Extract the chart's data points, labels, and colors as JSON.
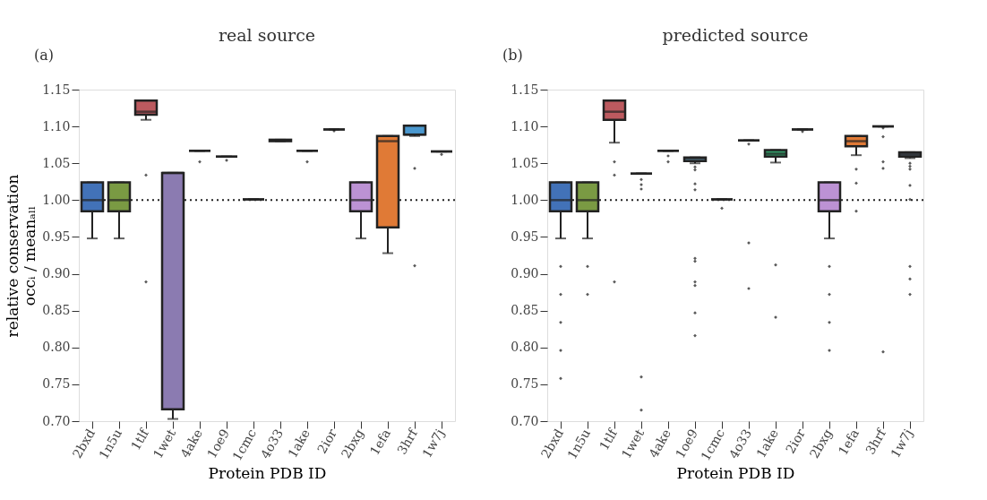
{
  "chart_data": [
    {
      "type": "box",
      "title": "real source",
      "xlabel": "Protein PDB ID",
      "ylabel": "relative conservation\noccᵢ / meanₐₗₗ",
      "annotations": [
        "(a)"
      ],
      "categories": [
        "2bxd",
        "1n5u",
        "1tlf",
        "1wet",
        "4ake",
        "1oe9",
        "1cmc",
        "4o33",
        "1ake",
        "2ior",
        "2bxg",
        "1efa",
        "3hrf",
        "1w7j"
      ],
      "colors": [
        "#4272b8",
        "#7a9a43",
        "#bc5a5f",
        "#8b7bb1",
        "#222222",
        "#222222",
        "#222222",
        "#222222",
        "#222222",
        "#222222",
        "#bc92d4",
        "#e07a36",
        "#4a98cf",
        "#222222"
      ],
      "boxes": [
        {
          "low": 0.948,
          "q1": 0.985,
          "median": 1.0,
          "q3": 1.024,
          "high": 1.024
        },
        {
          "low": 0.948,
          "q1": 0.985,
          "median": 1.0,
          "q3": 1.024,
          "high": 1.024
        },
        {
          "low": 1.109,
          "q1": 1.116,
          "median": 1.12,
          "q3": 1.135,
          "high": 1.135,
          "outliers": [
            1.034,
            0.889
          ]
        },
        {
          "low": 0.703,
          "q1": 0.716,
          "median": 1.037,
          "q3": 1.037,
          "high": 1.037
        },
        {
          "low": 1.067,
          "q1": 1.067,
          "median": 1.067,
          "q3": 1.067,
          "high": 1.067,
          "outliers": [
            1.052
          ]
        },
        {
          "low": 1.059,
          "q1": 1.059,
          "median": 1.059,
          "q3": 1.059,
          "high": 1.059,
          "outliers": [
            1.054
          ]
        },
        {
          "low": 1.001,
          "q1": 1.001,
          "median": 1.001,
          "q3": 1.001,
          "high": 1.001
        },
        {
          "low": 1.08,
          "q1": 1.08,
          "median": 1.081,
          "q3": 1.082,
          "high": 1.082
        },
        {
          "low": 1.067,
          "q1": 1.067,
          "median": 1.067,
          "q3": 1.067,
          "high": 1.067,
          "outliers": [
            1.052
          ]
        },
        {
          "low": 1.096,
          "q1": 1.096,
          "median": 1.096,
          "q3": 1.096,
          "high": 1.096,
          "outliers": [
            1.094
          ]
        },
        {
          "low": 0.948,
          "q1": 0.985,
          "median": 1.0,
          "q3": 1.024,
          "high": 1.024
        },
        {
          "low": 0.928,
          "q1": 0.963,
          "median": 1.08,
          "q3": 1.087,
          "high": 1.087
        },
        {
          "low": 1.087,
          "q1": 1.089,
          "median": 1.089,
          "q3": 1.101,
          "high": 1.101,
          "outliers": [
            1.043,
            0.911
          ]
        },
        {
          "low": 1.066,
          "q1": 1.066,
          "median": 1.066,
          "q3": 1.066,
          "high": 1.066,
          "outliers": [
            1.062
          ]
        }
      ],
      "ylim": [
        0.7,
        1.15
      ],
      "yticks": [
        {
          "value": 0.7,
          "label": "0.70"
        },
        0.75,
        {
          "value": 0.8,
          "label": "0.80"
        },
        0.85,
        {
          "value": 0.9,
          "label": "0.90"
        },
        0.95,
        {
          "value": 1.0,
          "label": "1.00"
        },
        1.05,
        {
          "value": 1.1,
          "label": "1.10"
        },
        1.15
      ],
      "ref_lines": [
        {
          "axis": "y",
          "value": 1.0,
          "color": "#222222",
          "line_style": "dotted"
        }
      ],
      "marker": "diamond"
    },
    {
      "type": "box",
      "title": "predicted source",
      "xlabel": "Protein PDB ID",
      "annotations": [
        "(b)"
      ],
      "categories": [
        "2bxd",
        "1n5u",
        "1tlf",
        "1wet",
        "4ake",
        "1oe9",
        "1cmc",
        "4o33",
        "1ake",
        "2ior",
        "2bxg",
        "1efa",
        "3hrf",
        "1w7j"
      ],
      "colors": [
        "#4272b8",
        "#7a9a43",
        "#bc5a5f",
        "#222222",
        "#222222",
        "#7ab6d4",
        "#222222",
        "#222222",
        "#33a06b",
        "#222222",
        "#bc92d4",
        "#e07a36",
        "#222222",
        "#5a6a7a"
      ],
      "boxes": [
        {
          "low": 0.948,
          "q1": 0.985,
          "median": 1.0,
          "q3": 1.024,
          "high": 1.024,
          "outliers": [
            0.91,
            0.872,
            0.834,
            0.796,
            0.758
          ]
        },
        {
          "low": 0.948,
          "q1": 0.985,
          "median": 1.0,
          "q3": 1.024,
          "high": 1.024,
          "outliers": [
            0.91,
            0.872
          ]
        },
        {
          "low": 1.078,
          "q1": 1.109,
          "median": 1.12,
          "q3": 1.135,
          "high": 1.135,
          "outliers": [
            1.052,
            1.034,
            0.889
          ]
        },
        {
          "low": 1.036,
          "q1": 1.036,
          "median": 1.036,
          "q3": 1.036,
          "high": 1.036,
          "outliers": [
            1.028,
            1.021,
            1.015,
            0.76,
            0.715
          ]
        },
        {
          "low": 1.067,
          "q1": 1.067,
          "median": 1.067,
          "q3": 1.067,
          "high": 1.067,
          "outliers": [
            1.06,
            1.052
          ]
        },
        {
          "low": 1.05,
          "q1": 1.053,
          "median": 1.056,
          "q3": 1.058,
          "high": 1.058,
          "outliers": [
            1.045,
            1.041,
            1.022,
            1.014,
            0.921,
            0.917,
            0.889,
            0.884,
            0.847,
            0.816
          ]
        },
        {
          "low": 1.001,
          "q1": 1.001,
          "median": 1.001,
          "q3": 1.001,
          "high": 1.001,
          "outliers": [
            0.989
          ]
        },
        {
          "low": 1.081,
          "q1": 1.081,
          "median": 1.081,
          "q3": 1.081,
          "high": 1.081,
          "outliers": [
            1.076,
            0.942,
            0.88
          ]
        },
        {
          "low": 1.051,
          "q1": 1.059,
          "median": 1.063,
          "q3": 1.068,
          "high": 1.068,
          "outliers": [
            0.912,
            0.841
          ]
        },
        {
          "low": 1.096,
          "q1": 1.096,
          "median": 1.096,
          "q3": 1.096,
          "high": 1.096,
          "outliers": [
            1.093
          ]
        },
        {
          "low": 0.948,
          "q1": 0.985,
          "median": 1.0,
          "q3": 1.024,
          "high": 1.024,
          "outliers": [
            0.91,
            0.872,
            0.834,
            0.796
          ]
        },
        {
          "low": 1.061,
          "q1": 1.073,
          "median": 1.08,
          "q3": 1.087,
          "high": 1.087,
          "outliers": [
            1.042,
            1.023,
            0.985
          ]
        },
        {
          "low": 1.1,
          "q1": 1.1,
          "median": 1.1,
          "q3": 1.1,
          "high": 1.1,
          "outliers": [
            1.098,
            1.086,
            1.052,
            1.043,
            0.794
          ]
        },
        {
          "low": 1.057,
          "q1": 1.059,
          "median": 1.062,
          "q3": 1.065,
          "high": 1.065,
          "outliers": [
            1.05,
            1.046,
            1.042,
            1.02,
            1.001,
            0.91,
            0.893,
            0.872
          ]
        }
      ],
      "ylim": [
        0.7,
        1.15
      ],
      "yticks": [
        {
          "value": 0.7,
          "label": "0.70"
        },
        0.75,
        {
          "value": 0.8,
          "label": "0.80"
        },
        0.85,
        {
          "value": 0.9,
          "label": "0.90"
        },
        0.95,
        {
          "value": 1.0,
          "label": "1.00"
        },
        1.05,
        {
          "value": 1.1,
          "label": "1.10"
        },
        1.15
      ],
      "ref_lines": [
        {
          "axis": "y",
          "value": 1.0,
          "color": "#222222",
          "line_style": "dotted"
        }
      ],
      "marker": "diamond"
    }
  ]
}
